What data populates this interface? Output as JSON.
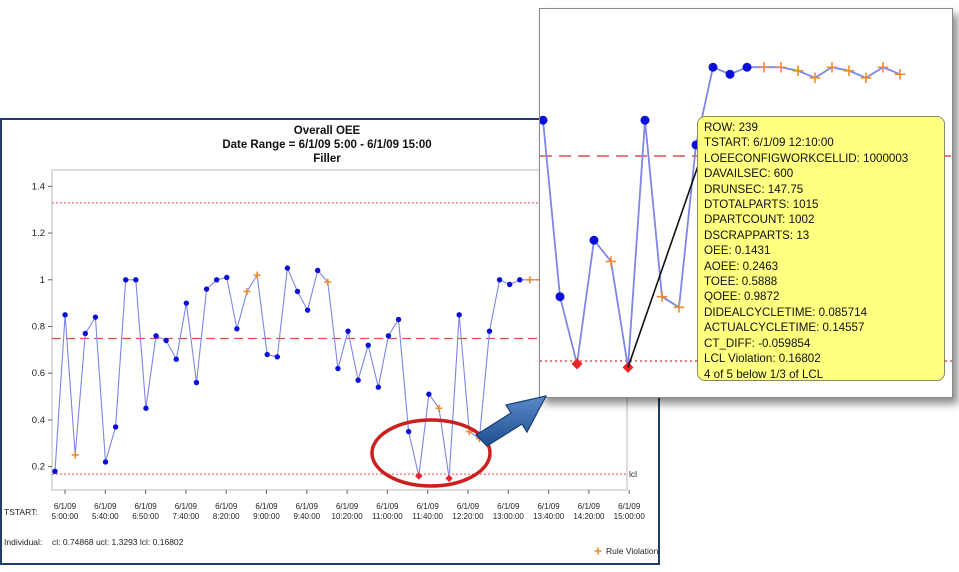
{
  "chart_data": [
    {
      "type": "line",
      "title": "Overall OEE",
      "subtitle": "Date Range = 6/1/09 5:00 - 6/1/09 15:00",
      "subtitle2": "Filler",
      "xlabel": "TSTART:",
      "ylim": [
        0.1,
        1.47
      ],
      "yticks": [
        0.2,
        0.4,
        0.6,
        0.8,
        1.0,
        1.2,
        1.4
      ],
      "ytick_labels": [
        "0.2",
        "0.4",
        "0.6",
        "0.8",
        "1",
        "1.2",
        "1.4"
      ],
      "x_tick_labels": [
        [
          "6/1/09",
          "5:00:00"
        ],
        [
          "6/1/09",
          "5:40:00"
        ],
        [
          "6/1/09",
          "6:50:00"
        ],
        [
          "6/1/09",
          "7:40:00"
        ],
        [
          "6/1/09",
          "8:20:00"
        ],
        [
          "6/1/09",
          "9:00:00"
        ],
        [
          "6/1/09",
          "9:40:00"
        ],
        [
          "6/1/09",
          "10:20:00"
        ],
        [
          "6/1/09",
          "11:00:00"
        ],
        [
          "6/1/09",
          "11:40:00"
        ],
        [
          "6/1/09",
          "12:20:00"
        ],
        [
          "6/1/09",
          "13:00:00"
        ],
        [
          "6/1/09",
          "13:40:00"
        ],
        [
          "6/1/09",
          "14:20:00"
        ],
        [
          "6/1/09",
          "15:00:00"
        ]
      ],
      "series": [
        {
          "values": [
            0.18,
            0.85,
            0.25,
            0.77,
            0.84,
            0.22,
            0.37,
            1.0,
            1.0,
            0.45,
            0.76,
            0.74,
            0.66,
            0.9,
            0.56,
            0.96,
            1.0,
            1.01,
            0.79,
            0.95,
            1.02,
            0.68,
            0.67,
            1.05,
            0.95,
            0.87,
            1.04,
            0.99,
            0.62,
            0.78,
            0.57,
            0.72,
            0.54,
            0.76,
            0.83,
            0.35,
            0.16,
            0.51,
            0.45,
            0.15,
            0.85,
            0.35,
            0.32,
            0.78,
            1.0,
            0.98,
            1.0,
            1.0,
            1.0
          ],
          "point_types": [
            "n",
            "n",
            "v",
            "n",
            "n",
            "n",
            "n",
            "n",
            "n",
            "n",
            "n",
            "n",
            "n",
            "n",
            "n",
            "n",
            "n",
            "n",
            "n",
            "v",
            "v",
            "n",
            "n",
            "n",
            "n",
            "n",
            "n",
            "v",
            "n",
            "n",
            "n",
            "n",
            "n",
            "n",
            "n",
            "n",
            "l",
            "n",
            "v",
            "l",
            "n",
            "v",
            "v",
            "n",
            "n",
            "n",
            "n",
            "v",
            "v"
          ]
        }
      ],
      "cl": 0.74868,
      "ucl": 1.3293,
      "lcl": 0.16802,
      "lcl_label": "lcl",
      "stats_label": "Individual:",
      "stats": "cl:  0.74868    ucl:  1.3293    lcl:  0.16802",
      "legend": "Rule Violation",
      "legend_position": "bottom-right"
    },
    {
      "type": "line",
      "description": "zoomed detail",
      "ylim": [
        0.1,
        1.08
      ],
      "series": [
        {
          "values": [
            0.85,
            0.35,
            0.16,
            0.51,
            0.45,
            0.15,
            0.85,
            0.35,
            0.32,
            0.78,
            1.0,
            0.98,
            1.0,
            1.0,
            1.0,
            0.99,
            0.97,
            1.0,
            0.99,
            0.97,
            1.0,
            0.98
          ],
          "point_types": [
            "n",
            "n",
            "l",
            "n",
            "v",
            "l",
            "n",
            "v",
            "v",
            "n",
            "n",
            "n",
            "n",
            "v",
            "v",
            "v",
            "v",
            "v",
            "v",
            "v",
            "v",
            "v"
          ]
        }
      ],
      "cl": 0.74868,
      "lcl": 0.16802
    }
  ],
  "tooltip": {
    "lines": [
      "ROW: 239",
      "TSTART: 6/1/09 12:10:00",
      "LOEECONFIGWORKCELLID: 1000003",
      "DAVAILSEC: 600",
      "DRUNSEC: 147.75",
      "DTOTALPARTS: 1015",
      "DPARTCOUNT: 1002",
      "DSCRAPPARTS: 13",
      "OEE: 0.1431",
      "AOEE: 0.2463",
      "TOEE: 0.5888",
      "QOEE: 0.9872",
      "DIDEALCYCLETIME: 0.085714",
      "ACTUALCYCLETIME: 0.14557",
      "CT_DIFF: -0.059854",
      "LCL Violation: 0.16802",
      "4 of 5 below 1/3 of LCL"
    ]
  },
  "colors": {
    "normal_point": "#0a10d8",
    "violation_point": "#f08c2c",
    "lcl_point": "#e8232a",
    "series_line": "#7e86e6",
    "center_line": "#e05050",
    "limit_line": "#e05050",
    "highlight_ellipse": "#cc1f1f",
    "arrow": "#1f4f8f",
    "tooltip_bg": "#ffff80"
  }
}
